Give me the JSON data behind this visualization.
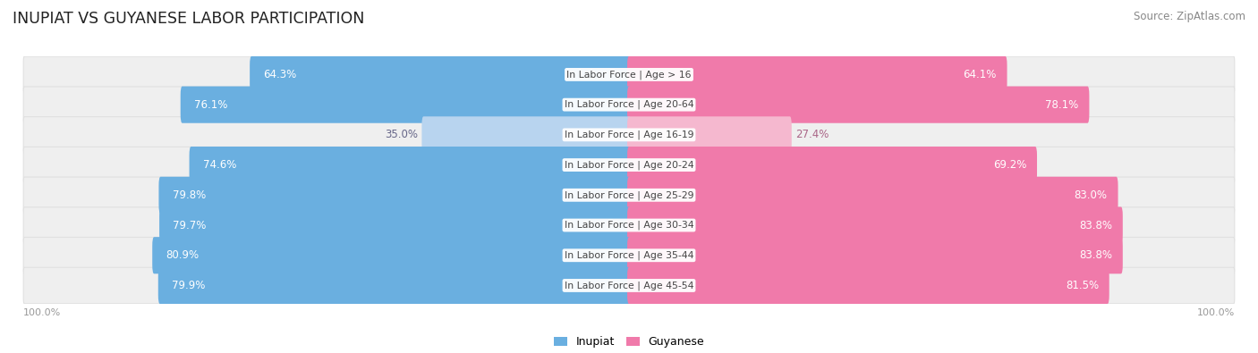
{
  "title": "INUPIAT VS GUYANESE LABOR PARTICIPATION",
  "source": "Source: ZipAtlas.com",
  "categories": [
    "In Labor Force | Age > 16",
    "In Labor Force | Age 20-64",
    "In Labor Force | Age 16-19",
    "In Labor Force | Age 20-24",
    "In Labor Force | Age 25-29",
    "In Labor Force | Age 30-34",
    "In Labor Force | Age 35-44",
    "In Labor Force | Age 45-54"
  ],
  "inupiat": [
    64.3,
    76.1,
    35.0,
    74.6,
    79.8,
    79.7,
    80.9,
    79.9
  ],
  "guyanese": [
    64.1,
    78.1,
    27.4,
    69.2,
    83.0,
    83.8,
    83.8,
    81.5
  ],
  "inupiat_color": "#6aafe0",
  "inupiat_color_light": "#b8d4ef",
  "guyanese_color": "#f07aaa",
  "guyanese_color_light": "#f5b8cf",
  "bg_row_color": "#efefef",
  "bg_row_edge": "#e0e0e0",
  "max_val": 100.0,
  "bar_height": 0.62,
  "title_fontsize": 12.5,
  "source_fontsize": 8.5,
  "label_fontsize": 8.5,
  "cat_fontsize": 7.8,
  "legend_fontsize": 9,
  "light_row_index": 2
}
